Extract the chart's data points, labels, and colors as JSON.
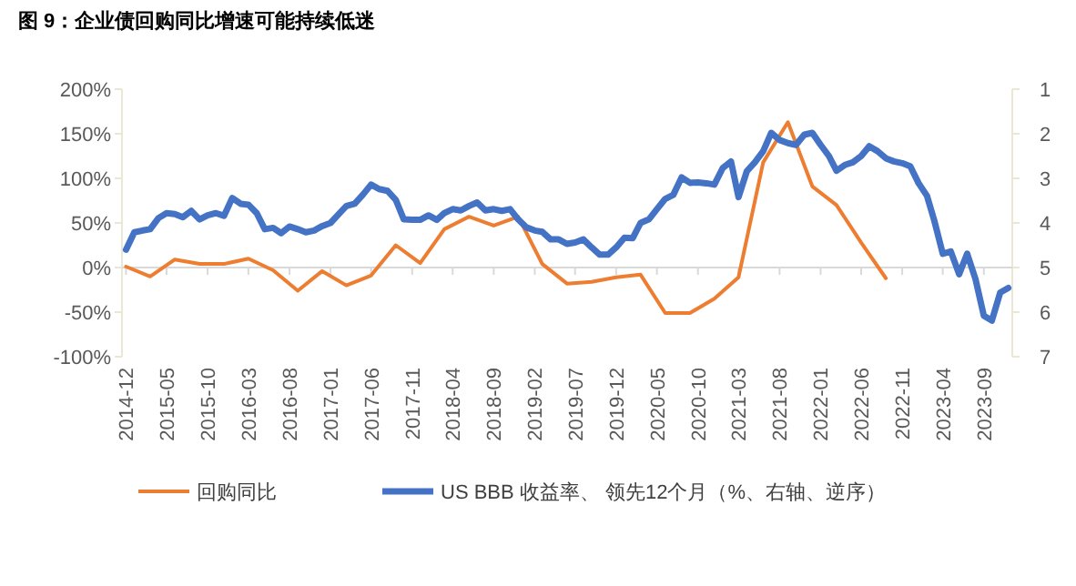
{
  "chart_data": {
    "type": "line",
    "title": "图 9：企业债回购同比增速可能持续低迷",
    "xlim": [
      "2014-11-16",
      "2023-12-16"
    ],
    "xticks": [
      "2014-12",
      "2015-05",
      "2015-10",
      "2016-03",
      "2016-08",
      "2017-01",
      "2017-06",
      "2017-11",
      "2018-04",
      "2018-09",
      "2019-02",
      "2019-07",
      "2019-12",
      "2020-05",
      "2020-10",
      "2021-03",
      "2021-08",
      "2022-01",
      "2022-06",
      "2022-11",
      "2023-04",
      "2023-09"
    ],
    "ylim": [
      -100,
      200
    ],
    "yticks": [
      {
        "value": -100,
        "label": "-100%"
      },
      {
        "value": -50,
        "label": "-50%"
      },
      {
        "value": 0,
        "label": "0%"
      },
      {
        "value": 50,
        "label": "50%"
      },
      {
        "value": 100,
        "label": "100%"
      },
      {
        "value": 150,
        "label": "150%"
      },
      {
        "value": 200,
        "label": "200%"
      }
    ],
    "y2lim": [
      7,
      1
    ],
    "y2ticks": [
      1,
      2,
      3,
      4,
      5,
      6,
      7
    ],
    "grid": false,
    "ref_lines": [
      {
        "axis": "y",
        "value": 0,
        "color": "#d9d9d9"
      }
    ],
    "legend": "bottom",
    "marker": "none",
    "line_style": "solid",
    "series": [
      {
        "name": "回购同比",
        "color": "#ed7d31",
        "x": [
          "2014-12",
          "2015-03",
          "2015-06",
          "2015-09",
          "2015-12",
          "2016-03",
          "2016-06",
          "2016-09",
          "2016-12",
          "2017-03",
          "2017-06",
          "2017-09",
          "2017-12",
          "2018-03",
          "2018-06",
          "2018-09",
          "2018-12",
          "2019-03",
          "2019-06",
          "2019-09",
          "2019-12",
          "2020-03",
          "2020-06",
          "2020-09",
          "2020-12",
          "2021-03",
          "2021-06",
          "2021-09",
          "2021-12",
          "2022-03",
          "2022-06",
          "2022-09"
        ],
        "values": [
          1,
          -10,
          9,
          4,
          4,
          10,
          -3,
          -26,
          -4,
          -20,
          -9,
          25,
          5,
          43,
          57,
          47,
          57,
          4,
          -18,
          -16,
          -11,
          -8,
          -51,
          -51,
          -35,
          -11,
          118,
          163,
          91,
          70,
          28,
          -12
        ]
      },
      {
        "name": "US BBB 收益率、 领先12个月（%、右轴、逆序）",
        "color": "#4472c4",
        "axis": "y2",
        "x": [
          "2014-12",
          "2015-01",
          "2015-02",
          "2015-03",
          "2015-04",
          "2015-05",
          "2015-06",
          "2015-07",
          "2015-08",
          "2015-09",
          "2015-10",
          "2015-11",
          "2015-12",
          "2016-01",
          "2016-02",
          "2016-03",
          "2016-04",
          "2016-05",
          "2016-06",
          "2016-07",
          "2016-08",
          "2016-09",
          "2016-10",
          "2016-11",
          "2016-12",
          "2017-01",
          "2017-02",
          "2017-03",
          "2017-04",
          "2017-05",
          "2017-06",
          "2017-07",
          "2017-08",
          "2017-09",
          "2017-10",
          "2017-11",
          "2017-12",
          "2018-01",
          "2018-02",
          "2018-03",
          "2018-04",
          "2018-05",
          "2018-06",
          "2018-07",
          "2018-08",
          "2018-09",
          "2018-10",
          "2018-11",
          "2018-12",
          "2019-01",
          "2019-02",
          "2019-03",
          "2019-04",
          "2019-05",
          "2019-06",
          "2019-07",
          "2019-08",
          "2019-09",
          "2019-10",
          "2019-11",
          "2019-12",
          "2020-01",
          "2020-02",
          "2020-03",
          "2020-04",
          "2020-05",
          "2020-06",
          "2020-07",
          "2020-08",
          "2020-09",
          "2020-10",
          "2020-11",
          "2020-12",
          "2021-01",
          "2021-02",
          "2021-03",
          "2021-04",
          "2021-05",
          "2021-06",
          "2021-07",
          "2021-08",
          "2021-09",
          "2021-10",
          "2021-11",
          "2021-12",
          "2022-01",
          "2022-02",
          "2022-03",
          "2022-04",
          "2022-05",
          "2022-06",
          "2022-07",
          "2022-08",
          "2022-09",
          "2022-10",
          "2022-11",
          "2022-12",
          "2023-01",
          "2023-02",
          "2023-03",
          "2023-04",
          "2023-05",
          "2023-06",
          "2023-07",
          "2023-08",
          "2023-09",
          "2023-10",
          "2023-11",
          "2023-12"
        ],
        "values": [
          4.6,
          4.21,
          4.17,
          4.14,
          3.89,
          3.78,
          3.8,
          3.87,
          3.73,
          3.92,
          3.83,
          3.78,
          3.84,
          3.44,
          3.57,
          3.59,
          3.78,
          4.14,
          4.11,
          4.23,
          4.08,
          4.14,
          4.21,
          4.17,
          4.07,
          4.0,
          3.8,
          3.62,
          3.57,
          3.37,
          3.14,
          3.24,
          3.28,
          3.48,
          3.92,
          3.93,
          3.93,
          3.83,
          3.93,
          3.78,
          3.69,
          3.72,
          3.62,
          3.54,
          3.72,
          3.69,
          3.73,
          3.69,
          3.92,
          4.1,
          4.17,
          4.2,
          4.37,
          4.37,
          4.47,
          4.44,
          4.37,
          4.55,
          4.71,
          4.71,
          4.55,
          4.33,
          4.34,
          4.0,
          3.92,
          3.69,
          3.46,
          3.37,
          2.98,
          3.1,
          3.09,
          3.11,
          3.14,
          2.77,
          2.62,
          3.42,
          2.84,
          2.64,
          2.39,
          1.98,
          2.14,
          2.21,
          2.25,
          2.02,
          1.98,
          2.25,
          2.5,
          2.83,
          2.7,
          2.64,
          2.5,
          2.28,
          2.39,
          2.55,
          2.62,
          2.66,
          2.73,
          3.11,
          3.39,
          3.96,
          4.69,
          4.64,
          5.15,
          4.69,
          5.26,
          6.08,
          6.19,
          5.56,
          5.46
        ]
      }
    ]
  }
}
